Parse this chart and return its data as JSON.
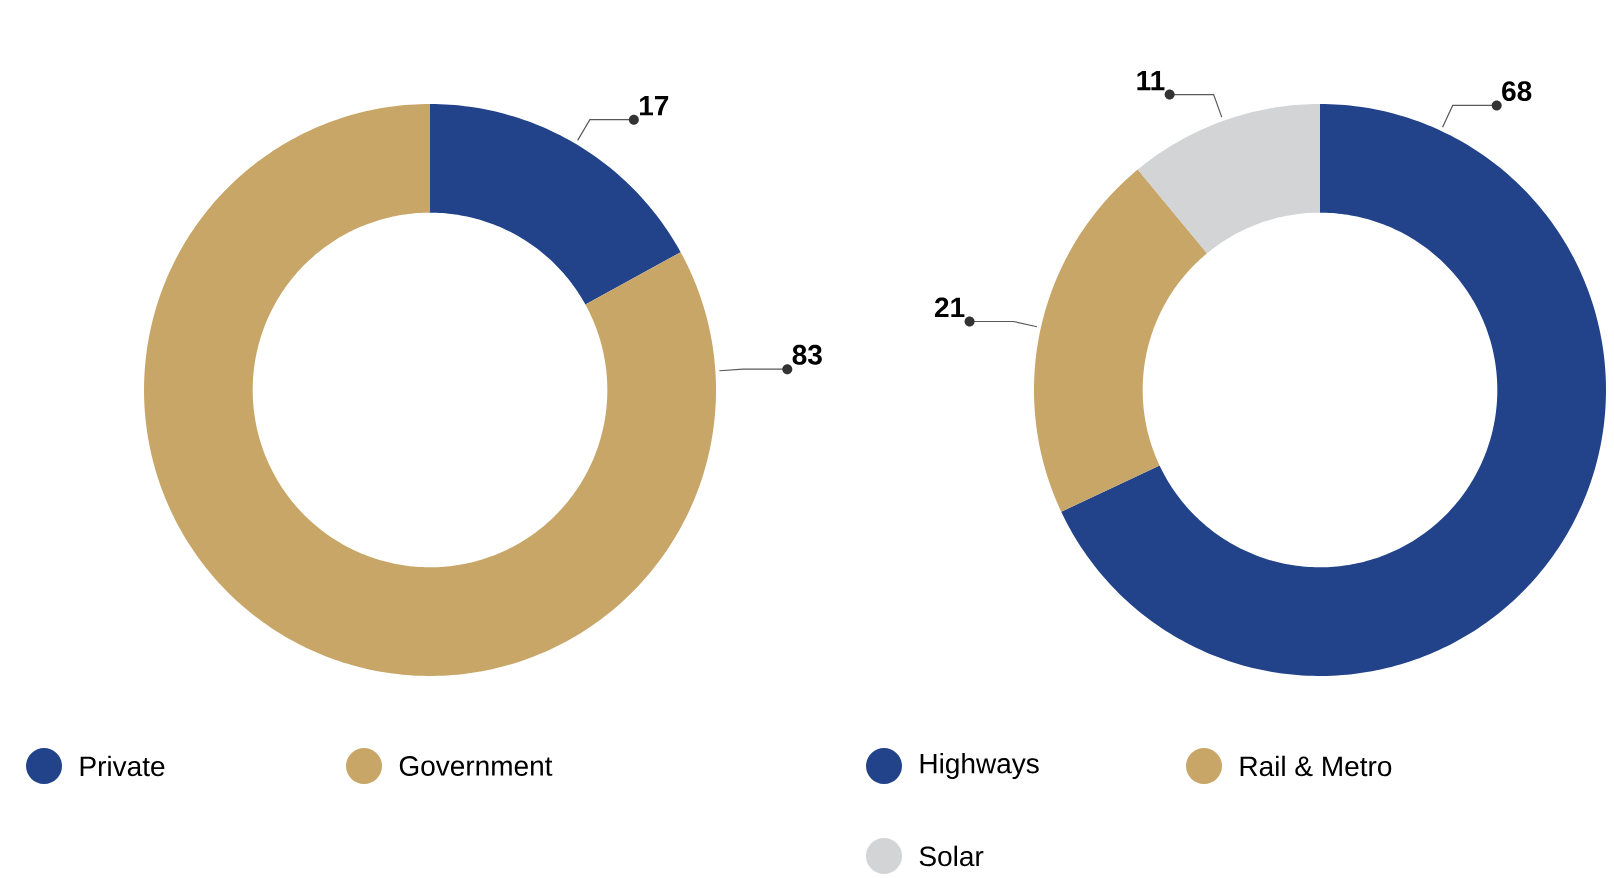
{
  "chart_data": [
    {
      "type": "donut",
      "categories": [
        "Private",
        "Government"
      ],
      "values": [
        17,
        83
      ],
      "colors": [
        "#22438a",
        "#c8a668"
      ],
      "legend": "bottom",
      "data_labels": true
    },
    {
      "type": "donut",
      "categories": [
        "Highways",
        "Rail & Metro",
        "Solar"
      ],
      "values": [
        68,
        21,
        11
      ],
      "colors": [
        "#22438a",
        "#c8a668",
        "#d3d4d6"
      ],
      "legend": "bottom",
      "data_labels": true
    }
  ]
}
